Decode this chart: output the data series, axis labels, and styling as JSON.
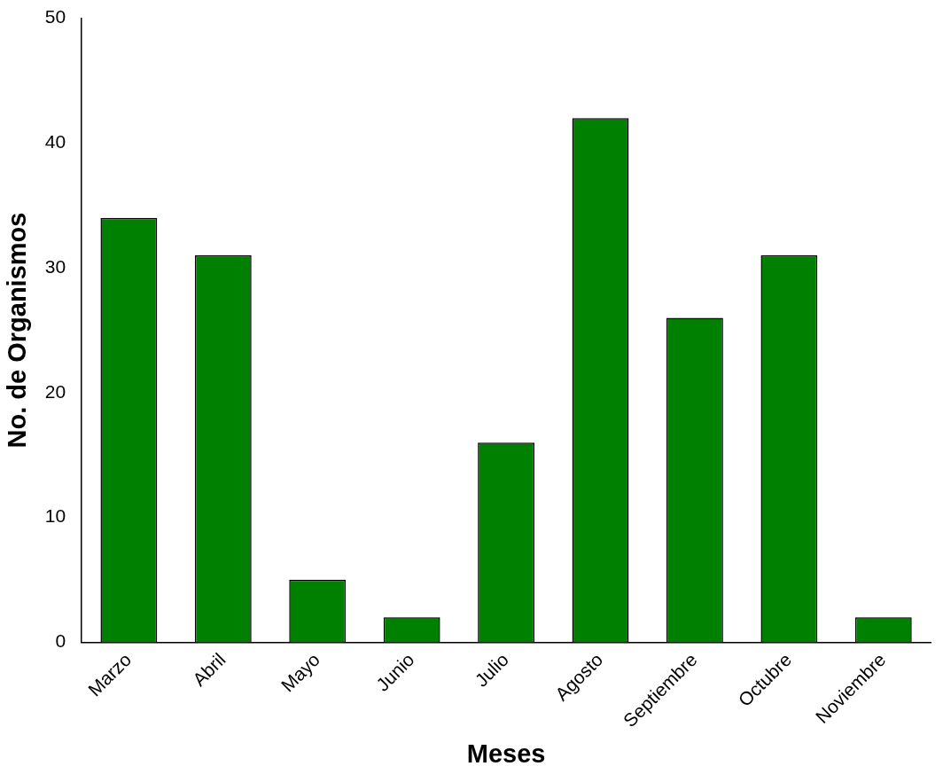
{
  "chart_data": {
    "type": "bar",
    "xlabel": "Meses",
    "ylabel": "No. de Organismos",
    "categories": [
      "Marzo",
      "Abril",
      "Mayo",
      "Junio",
      "Julio",
      "Agosto",
      "Septiembre",
      "Octubre",
      "Noviembre"
    ],
    "values": [
      34,
      31,
      5,
      2,
      16,
      42,
      26,
      31,
      2
    ],
    "color": "#008000",
    "ylim": [
      0,
      50
    ],
    "yticks": [
      0,
      10,
      20,
      30,
      40,
      50
    ],
    "grid": false,
    "legend": false
  }
}
